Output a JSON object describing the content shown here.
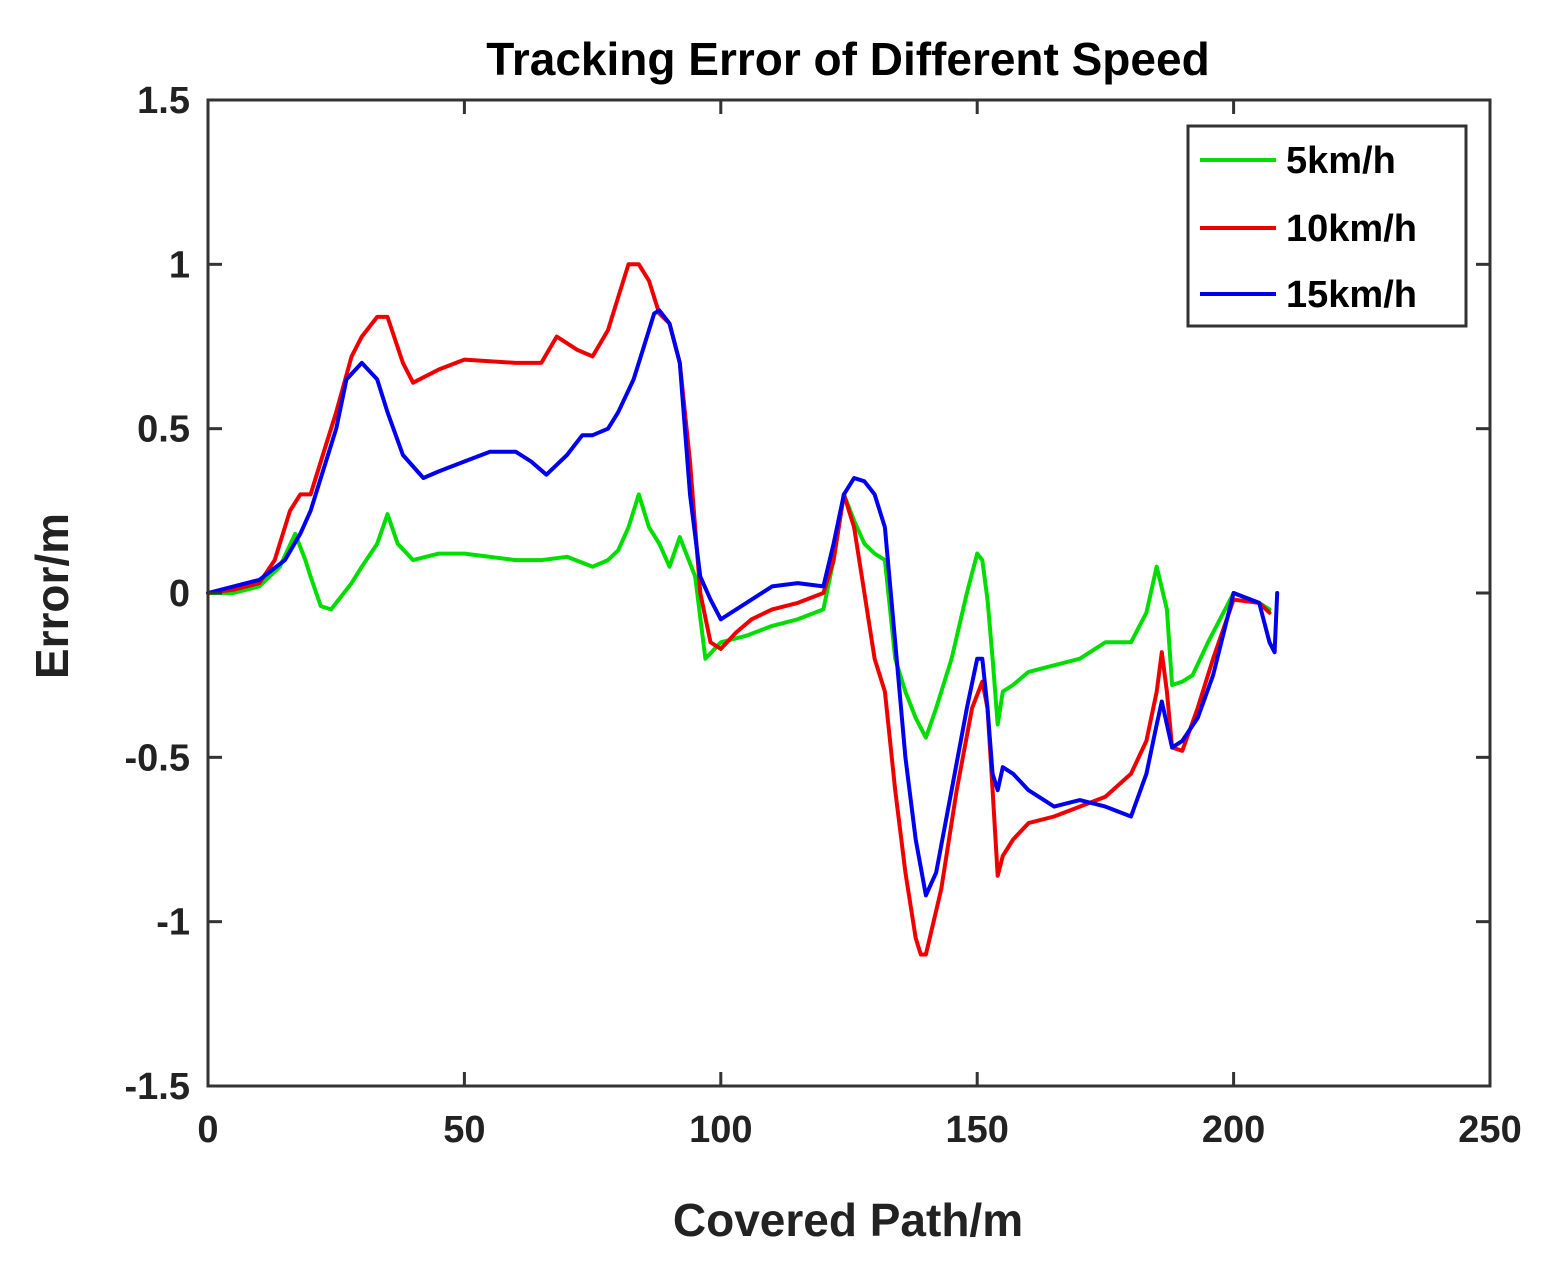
{
  "chart_data": {
    "type": "line",
    "title": "Tracking Error of Different Speed",
    "xlabel": "Covered Path/m",
    "ylabel": "Error/m",
    "xlim": [
      0,
      250
    ],
    "ylim": [
      -1.5,
      1.5
    ],
    "xticks": [
      0,
      50,
      100,
      150,
      200,
      250
    ],
    "xtick_labels": [
      "0",
      "50",
      "100",
      "150",
      "200",
      "250"
    ],
    "yticks": [
      -1.5,
      -1,
      -0.5,
      0,
      0.5,
      1,
      1.5
    ],
    "ytick_labels": [
      "-1.5",
      "-1",
      "-0.5",
      "0",
      "0.5",
      "1",
      "1.5"
    ],
    "grid": false,
    "legend_position": "top-right",
    "series": [
      {
        "name": "5km/h",
        "color": "#00dd00",
        "x": [
          0,
          5,
          10,
          14,
          17,
          19,
          20,
          22,
          24,
          28,
          30,
          33,
          35,
          37,
          40,
          45,
          50,
          60,
          65,
          70,
          75,
          78,
          80,
          82,
          84,
          86,
          88,
          90,
          92,
          95,
          97,
          100,
          105,
          110,
          115,
          120,
          122,
          124,
          126,
          128,
          130,
          132,
          134,
          136,
          138,
          140,
          142,
          145,
          148,
          150,
          151,
          152,
          153,
          154,
          155,
          157,
          160,
          165,
          170,
          175,
          180,
          183,
          185,
          187,
          188,
          190,
          192,
          195,
          200,
          205,
          207
        ],
        "y": [
          0,
          0,
          0.02,
          0.08,
          0.18,
          0.1,
          0.05,
          -0.04,
          -0.05,
          0.03,
          0.08,
          0.15,
          0.24,
          0.15,
          0.1,
          0.12,
          0.12,
          0.1,
          0.1,
          0.11,
          0.08,
          0.1,
          0.13,
          0.2,
          0.3,
          0.2,
          0.15,
          0.08,
          0.17,
          0.05,
          -0.2,
          -0.15,
          -0.13,
          -0.1,
          -0.08,
          -0.05,
          0.1,
          0.3,
          0.22,
          0.15,
          0.12,
          0.1,
          -0.2,
          -0.3,
          -0.38,
          -0.44,
          -0.35,
          -0.2,
          0,
          0.12,
          0.1,
          -0.02,
          -0.2,
          -0.4,
          -0.3,
          -0.28,
          -0.24,
          -0.22,
          -0.2,
          -0.15,
          -0.15,
          -0.06,
          0.08,
          -0.05,
          -0.28,
          -0.27,
          -0.25,
          -0.15,
          0,
          -0.03,
          -0.05
        ]
      },
      {
        "name": "10km/h",
        "color": "#ee0000",
        "x": [
          0,
          5,
          10,
          13,
          16,
          18,
          20,
          22,
          25,
          28,
          30,
          33,
          35,
          38,
          40,
          45,
          50,
          60,
          65,
          68,
          72,
          75,
          78,
          80,
          82,
          84,
          86,
          88,
          90,
          92,
          94,
          96,
          98,
          100,
          103,
          106,
          110,
          115,
          120,
          122,
          124,
          126,
          128,
          130,
          132,
          134,
          136,
          138,
          139,
          140,
          143,
          146,
          149,
          151,
          152,
          153,
          154,
          155,
          157,
          160,
          165,
          170,
          175,
          180,
          183,
          185,
          186,
          187,
          188,
          190,
          193,
          196,
          200,
          205,
          207
        ],
        "y": [
          0,
          0.01,
          0.03,
          0.1,
          0.25,
          0.3,
          0.3,
          0.4,
          0.55,
          0.72,
          0.78,
          0.84,
          0.84,
          0.7,
          0.64,
          0.68,
          0.71,
          0.7,
          0.7,
          0.78,
          0.74,
          0.72,
          0.8,
          0.9,
          1.0,
          1.0,
          0.95,
          0.85,
          0.82,
          0.7,
          0.4,
          0,
          -0.15,
          -0.17,
          -0.12,
          -0.08,
          -0.05,
          -0.03,
          0,
          0.1,
          0.3,
          0.2,
          0,
          -0.2,
          -0.3,
          -0.6,
          -0.85,
          -1.05,
          -1.1,
          -1.1,
          -0.9,
          -0.6,
          -0.35,
          -0.27,
          -0.35,
          -0.6,
          -0.86,
          -0.8,
          -0.75,
          -0.7,
          -0.68,
          -0.65,
          -0.62,
          -0.55,
          -0.45,
          -0.3,
          -0.18,
          -0.3,
          -0.47,
          -0.48,
          -0.35,
          -0.2,
          -0.02,
          -0.03,
          -0.06
        ]
      },
      {
        "name": "15km/h",
        "color": "#0000ee",
        "x": [
          0,
          5,
          10,
          15,
          18,
          20,
          22,
          25,
          27,
          30,
          33,
          35,
          38,
          42,
          45,
          50,
          55,
          60,
          63,
          66,
          70,
          73,
          75,
          78,
          80,
          83,
          85,
          87,
          88,
          90,
          92,
          94,
          96,
          98,
          100,
          103,
          106,
          110,
          115,
          120,
          122,
          124,
          126,
          128,
          130,
          132,
          134,
          136,
          138,
          140,
          142,
          145,
          148,
          150,
          151,
          152,
          153,
          154,
          155,
          157,
          160,
          165,
          170,
          175,
          180,
          183,
          185,
          186,
          187,
          188,
          190,
          193,
          196,
          200,
          205,
          207,
          208,
          208.5
        ],
        "y": [
          0,
          0.02,
          0.04,
          0.1,
          0.18,
          0.25,
          0.35,
          0.5,
          0.65,
          0.7,
          0.65,
          0.55,
          0.42,
          0.35,
          0.37,
          0.4,
          0.43,
          0.43,
          0.4,
          0.36,
          0.42,
          0.48,
          0.48,
          0.5,
          0.55,
          0.65,
          0.75,
          0.85,
          0.86,
          0.82,
          0.7,
          0.3,
          0.05,
          -0.02,
          -0.08,
          -0.05,
          -0.02,
          0.02,
          0.03,
          0.02,
          0.15,
          0.3,
          0.35,
          0.34,
          0.3,
          0.2,
          -0.15,
          -0.5,
          -0.75,
          -0.92,
          -0.85,
          -0.6,
          -0.35,
          -0.2,
          -0.2,
          -0.35,
          -0.55,
          -0.6,
          -0.53,
          -0.55,
          -0.6,
          -0.65,
          -0.63,
          -0.65,
          -0.68,
          -0.55,
          -0.4,
          -0.33,
          -0.4,
          -0.47,
          -0.45,
          -0.38,
          -0.25,
          0,
          -0.03,
          -0.15,
          -0.18,
          0
        ]
      }
    ]
  }
}
